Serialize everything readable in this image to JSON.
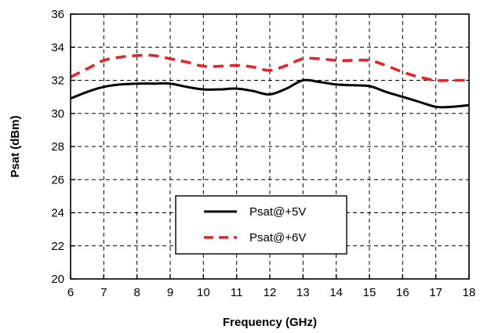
{
  "chart_data": {
    "type": "line",
    "xlabel": "Frequency (GHz)",
    "ylabel": "Psat (dBm)",
    "xlim": [
      6,
      18
    ],
    "ylim": [
      20,
      36
    ],
    "x_ticks": [
      6,
      7,
      8,
      9,
      10,
      11,
      12,
      13,
      14,
      15,
      16,
      17,
      18
    ],
    "y_ticks": [
      20,
      22,
      24,
      26,
      28,
      30,
      32,
      34,
      36
    ],
    "grid": true,
    "legend_position": "lower-center",
    "series": [
      {
        "name": "Psat@+5V",
        "color": "#000000",
        "style": "solid",
        "x": [
          6,
          6.5,
          7,
          7.5,
          8,
          8.5,
          9,
          9.5,
          10,
          10.5,
          11,
          11.5,
          12,
          12.5,
          13,
          13.5,
          14,
          14.5,
          15,
          15.5,
          16,
          16.5,
          17,
          17.5,
          18
        ],
        "y": [
          30.9,
          31.3,
          31.6,
          31.75,
          31.8,
          31.8,
          31.8,
          31.6,
          31.45,
          31.45,
          31.5,
          31.35,
          31.15,
          31.5,
          32.0,
          31.9,
          31.75,
          31.7,
          31.65,
          31.3,
          31.0,
          30.7,
          30.4,
          30.4,
          30.5
        ]
      },
      {
        "name": "Psat@+6V",
        "color": "#e8232a",
        "style": "dashed",
        "x": [
          6,
          6.5,
          7,
          7.5,
          8,
          8.5,
          9,
          9.5,
          10,
          10.5,
          11,
          11.5,
          12,
          12.5,
          13,
          13.5,
          14,
          14.5,
          15,
          15.5,
          16,
          16.5,
          17,
          17.5,
          18
        ],
        "y": [
          32.2,
          32.7,
          33.2,
          33.4,
          33.5,
          33.5,
          33.3,
          33.1,
          32.85,
          32.85,
          32.9,
          32.8,
          32.6,
          32.9,
          33.3,
          33.3,
          33.2,
          33.2,
          33.2,
          32.9,
          32.5,
          32.2,
          32.0,
          32.0,
          32.0
        ]
      }
    ]
  }
}
